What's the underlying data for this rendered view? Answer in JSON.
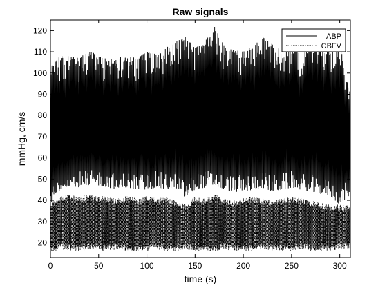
{
  "chart_data": {
    "type": "line",
    "title": "Raw signals",
    "xlabel": "time (s)",
    "ylabel": "mmHg, cm/s",
    "xlim": [
      0,
      311
    ],
    "ylim": [
      13,
      125
    ],
    "xticks": [
      0,
      50,
      100,
      150,
      200,
      250,
      300
    ],
    "yticks": [
      20,
      30,
      40,
      50,
      60,
      70,
      80,
      90,
      100,
      110,
      120
    ],
    "grid": false,
    "legend_position": "top-right",
    "series": [
      {
        "name": "ABP",
        "line_style": "solid",
        "color": "#000000",
        "beat_period_s": 0.8,
        "envelope": {
          "x": [
            0,
            10,
            20,
            30,
            40,
            50,
            60,
            70,
            80,
            90,
            100,
            110,
            120,
            130,
            140,
            150,
            160,
            170,
            180,
            190,
            200,
            210,
            220,
            230,
            240,
            250,
            260,
            270,
            280,
            290,
            300,
            310
          ],
          "max": [
            103,
            108,
            108,
            107,
            111,
            108,
            107,
            109,
            108,
            107,
            110,
            109,
            112,
            115,
            117,
            112,
            115,
            122,
            113,
            111,
            110,
            113,
            117,
            114,
            111,
            112,
            110,
            114,
            114,
            111,
            114,
            92
          ],
          "min": [
            38,
            45,
            47,
            46,
            46,
            47,
            46,
            45,
            46,
            45,
            45,
            46,
            45,
            46,
            41,
            45,
            46,
            47,
            45,
            44,
            44,
            45,
            46,
            44,
            45,
            46,
            45,
            44,
            43,
            42,
            38,
            42
          ]
        }
      },
      {
        "name": "CBFV",
        "line_style": "dotted",
        "color": "#000000",
        "envelope": {
          "x": [
            0,
            10,
            20,
            30,
            40,
            50,
            60,
            70,
            80,
            90,
            100,
            110,
            120,
            130,
            140,
            150,
            160,
            170,
            180,
            190,
            200,
            210,
            220,
            230,
            240,
            250,
            260,
            270,
            280,
            290,
            300,
            310
          ],
          "max": [
            39,
            42,
            43,
            42,
            43,
            42,
            42,
            41,
            42,
            41,
            42,
            41,
            42,
            40,
            38,
            42,
            41,
            43,
            41,
            40,
            41,
            42,
            41,
            40,
            41,
            42,
            41,
            40,
            39,
            38,
            38,
            38
          ],
          "min": [
            15,
            17,
            16,
            16,
            17,
            16,
            16,
            17,
            16,
            16,
            16,
            17,
            16,
            16,
            17,
            16,
            16,
            16,
            17,
            16,
            16,
            16,
            17,
            16,
            16,
            16,
            17,
            16,
            16,
            16,
            17,
            17
          ]
        }
      }
    ]
  }
}
